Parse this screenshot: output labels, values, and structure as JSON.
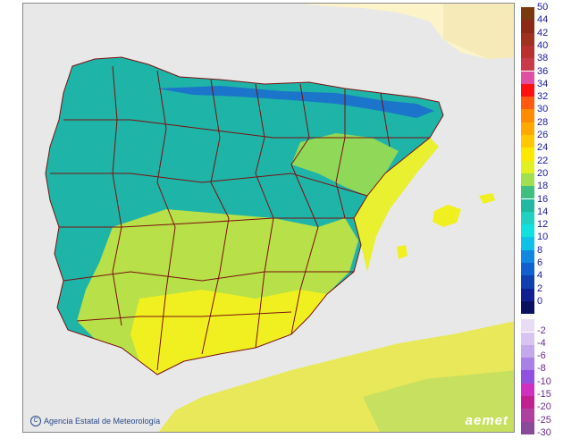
{
  "map": {
    "credit_text": "Agencia Estatal de Meteorología",
    "logo_text": "aemet",
    "colors": {
      "sea": "#e8e8e8",
      "land_outside": "#fdf3c8",
      "border": "#7a1010"
    }
  },
  "legend": {
    "positive": [
      {
        "label": "50",
        "color": "#7a3a10"
      },
      {
        "label": "44",
        "color": "#8c2a18"
      },
      {
        "label": "42",
        "color": "#a03020"
      },
      {
        "label": "40",
        "color": "#b83030"
      },
      {
        "label": "38",
        "color": "#c83a4a"
      },
      {
        "label": "36",
        "color": "#e050a0"
      },
      {
        "label": "34",
        "color": "#ff1010"
      },
      {
        "label": "32",
        "color": "#ff5a10"
      },
      {
        "label": "30",
        "color": "#ff8c00"
      },
      {
        "label": "28",
        "color": "#ffa800"
      },
      {
        "label": "26",
        "color": "#ffc800"
      },
      {
        "label": "24",
        "color": "#ffe800"
      },
      {
        "label": "22",
        "color": "#e0f020"
      },
      {
        "label": "20",
        "color": "#a0e050"
      },
      {
        "label": "18",
        "color": "#40c080"
      },
      {
        "label": "16",
        "color": "#20b8a0"
      },
      {
        "label": "14",
        "color": "#20d0c0"
      },
      {
        "label": "12",
        "color": "#10e0e0"
      },
      {
        "label": "10",
        "color": "#10c0e8"
      },
      {
        "label": "8",
        "color": "#1088e0"
      },
      {
        "label": "6",
        "color": "#1060d0"
      },
      {
        "label": "4",
        "color": "#1040b0"
      },
      {
        "label": "2",
        "color": "#102090"
      },
      {
        "label": "0",
        "color": "#0a1060"
      }
    ],
    "negative": [
      {
        "label": "-2",
        "color": "#e8dcf4"
      },
      {
        "label": "-4",
        "color": "#d8c4f0"
      },
      {
        "label": "-6",
        "color": "#c4a8ec"
      },
      {
        "label": "-8",
        "color": "#a880e8"
      },
      {
        "label": "-10",
        "color": "#9050e0"
      },
      {
        "label": "-15",
        "color": "#d030c0"
      },
      {
        "label": "-20",
        "color": "#c02090"
      },
      {
        "label": "-25",
        "color": "#b040a0"
      },
      {
        "label": "-30",
        "color": "#8a4a9a"
      }
    ]
  }
}
